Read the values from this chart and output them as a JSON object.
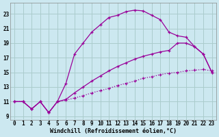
{
  "xlabel": "Windchill (Refroidissement éolien,°C)",
  "bg_color": "#cce8f0",
  "grid_color": "#aacccc",
  "line_color": "#990099",
  "xlim": [
    -0.5,
    23.5
  ],
  "ylim": [
    8.5,
    24.5
  ],
  "xticks": [
    0,
    1,
    2,
    3,
    4,
    5,
    6,
    7,
    8,
    9,
    10,
    11,
    12,
    13,
    14,
    15,
    16,
    17,
    18,
    19,
    20,
    21,
    22,
    23
  ],
  "yticks": [
    9,
    11,
    13,
    15,
    17,
    19,
    21,
    23
  ],
  "tick_fontsize": 5.5,
  "xlabel_fontsize": 6.0,
  "line1_x": [
    0,
    1,
    2,
    3,
    4,
    5,
    6,
    7,
    8,
    9,
    10,
    11,
    12,
    13,
    14,
    15,
    16,
    17,
    18,
    19,
    20,
    21,
    22,
    23
  ],
  "line1_y": [
    11.0,
    11.0,
    10.0,
    11.0,
    9.5,
    11.0,
    13.5,
    17.5,
    19.0,
    20.5,
    21.5,
    22.5,
    22.8,
    23.3,
    23.5,
    23.4,
    22.8,
    22.2,
    20.5,
    20.0,
    19.8,
    18.5,
    17.5,
    15.0
  ],
  "line2_x": [
    0,
    1,
    2,
    3,
    4,
    5,
    6,
    7,
    8,
    9,
    10,
    11,
    12,
    13,
    14,
    15,
    16,
    17,
    18,
    19,
    20,
    21,
    22,
    23
  ],
  "line2_y": [
    11.0,
    11.0,
    10.0,
    11.0,
    9.5,
    11.0,
    11.2,
    11.5,
    11.8,
    12.2,
    12.5,
    12.8,
    13.2,
    13.5,
    13.8,
    14.2,
    14.4,
    14.7,
    14.9,
    15.0,
    15.2,
    15.3,
    15.4,
    15.2
  ],
  "line3_x": [
    0,
    1,
    2,
    3,
    4,
    5,
    6,
    7,
    8,
    9,
    10,
    11,
    12,
    13,
    14,
    15,
    16,
    17,
    18,
    19,
    20,
    21,
    22,
    23
  ],
  "line3_y": [
    11.0,
    11.0,
    10.0,
    11.0,
    9.5,
    11.0,
    11.3,
    12.2,
    13.0,
    13.8,
    14.5,
    15.2,
    15.8,
    16.3,
    16.8,
    17.2,
    17.5,
    17.8,
    18.0,
    19.0,
    19.0,
    18.5,
    17.5,
    15.0
  ]
}
